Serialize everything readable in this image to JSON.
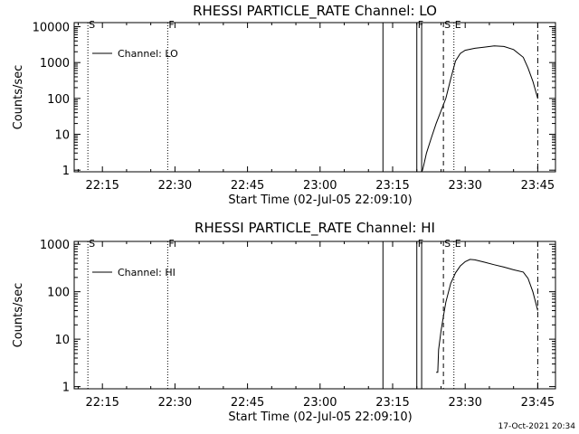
{
  "footer_timestamp": "17-Oct-2021 20:34",
  "colors": {
    "background": "#ffffff",
    "foreground": "#000000"
  },
  "chart_data": [
    {
      "type": "line",
      "title": "RHESSI PARTICLE_RATE Channel: LO",
      "xlabel": "Start Time (02-Jul-05 22:09:10)",
      "ylabel": "Counts/sec",
      "y_scale": "log",
      "xlim": [
        "22:09:10",
        "23:48:40"
      ],
      "ylim": [
        0.9,
        13000
      ],
      "x_ticks": [
        "22:15",
        "22:30",
        "22:45",
        "23:00",
        "23:15",
        "23:30",
        "23:45"
      ],
      "y_ticks": [
        {
          "value": 1,
          "label": "1"
        },
        {
          "value": 10,
          "label": "10"
        },
        {
          "value": 100,
          "label": "100"
        },
        {
          "value": 1000,
          "label": "1000"
        },
        {
          "value": 10000,
          "label": "10000"
        }
      ],
      "legend": {
        "position": "top-left",
        "entries": [
          "Channel: LO"
        ]
      },
      "series": [
        {
          "name": "Channel: LO",
          "points": [
            [
              "23:21:00",
              0.9
            ],
            [
              "23:21:10",
              1.0
            ],
            [
              "23:21:30",
              1.5
            ],
            [
              "23:22:00",
              3
            ],
            [
              "23:23:00",
              8
            ],
            [
              "23:24:00",
              20
            ],
            [
              "23:25:00",
              45
            ],
            [
              "23:26:00",
              100
            ],
            [
              "23:27:00",
              350
            ],
            [
              "23:28:00",
              1100
            ],
            [
              "23:29:00",
              1800
            ],
            [
              "23:30:00",
              2200
            ],
            [
              "23:32:00",
              2500
            ],
            [
              "23:34:00",
              2700
            ],
            [
              "23:36:00",
              2900
            ],
            [
              "23:38:00",
              2800
            ],
            [
              "23:40:00",
              2300
            ],
            [
              "23:42:00",
              1400
            ],
            [
              "23:43:00",
              700
            ],
            [
              "23:44:00",
              300
            ],
            [
              "23:45:00",
              100
            ]
          ]
        }
      ],
      "markers": [
        {
          "time": "22:12:00",
          "label": "S",
          "style": "dotted"
        },
        {
          "time": "22:28:30",
          "label": "F",
          "style": "dotted"
        },
        {
          "time": "23:13:00",
          "label": "",
          "style": "solid"
        },
        {
          "time": "23:20:00",
          "label": "F",
          "style": "solid"
        },
        {
          "time": "23:21:00",
          "label": "",
          "style": "solid"
        },
        {
          "time": "23:25:30",
          "label": "S",
          "style": "dashed"
        },
        {
          "time": "23:27:40",
          "label": "E",
          "style": "dotted"
        },
        {
          "time": "23:45:00",
          "label": "",
          "style": "dashdot"
        }
      ]
    },
    {
      "type": "line",
      "title": "RHESSI PARTICLE_RATE Channel: HI",
      "xlabel": "Start Time (02-Jul-05 22:09:10)",
      "ylabel": "Counts/sec",
      "y_scale": "log",
      "xlim": [
        "22:09:10",
        "23:48:40"
      ],
      "ylim": [
        0.9,
        1150
      ],
      "x_ticks": [
        "22:15",
        "22:30",
        "22:45",
        "23:00",
        "23:15",
        "23:30",
        "23:45"
      ],
      "y_ticks": [
        {
          "value": 1,
          "label": "1"
        },
        {
          "value": 10,
          "label": "10"
        },
        {
          "value": 100,
          "label": "100"
        },
        {
          "value": 1000,
          "label": "1000"
        }
      ],
      "legend": {
        "position": "top-left",
        "entries": [
          "Channel: HI"
        ]
      },
      "series": [
        {
          "name": "Channel: HI",
          "points": [
            [
              "23:24:00",
              2
            ],
            [
              "23:24:20",
              2
            ],
            [
              "23:24:30",
              6
            ],
            [
              "23:25:00",
              15
            ],
            [
              "23:25:30",
              30
            ],
            [
              "23:26:00",
              60
            ],
            [
              "23:27:00",
              150
            ],
            [
              "23:28:00",
              250
            ],
            [
              "23:29:00",
              350
            ],
            [
              "23:30:00",
              430
            ],
            [
              "23:31:00",
              480
            ],
            [
              "23:32:00",
              470
            ],
            [
              "23:34:00",
              420
            ],
            [
              "23:36:00",
              370
            ],
            [
              "23:38:00",
              330
            ],
            [
              "23:40:00",
              290
            ],
            [
              "23:42:00",
              260
            ],
            [
              "23:43:00",
              190
            ],
            [
              "23:44:00",
              100
            ],
            [
              "23:45:00",
              40
            ]
          ]
        }
      ],
      "markers": [
        {
          "time": "22:12:00",
          "label": "S",
          "style": "dotted"
        },
        {
          "time": "22:28:30",
          "label": "F",
          "style": "dotted"
        },
        {
          "time": "23:13:00",
          "label": "",
          "style": "solid"
        },
        {
          "time": "23:20:00",
          "label": "F",
          "style": "solid"
        },
        {
          "time": "23:21:00",
          "label": "",
          "style": "solid"
        },
        {
          "time": "23:25:30",
          "label": "S",
          "style": "dashed"
        },
        {
          "time": "23:27:40",
          "label": "E",
          "style": "dotted"
        },
        {
          "time": "23:45:00",
          "label": "",
          "style": "dashdot"
        }
      ]
    }
  ]
}
